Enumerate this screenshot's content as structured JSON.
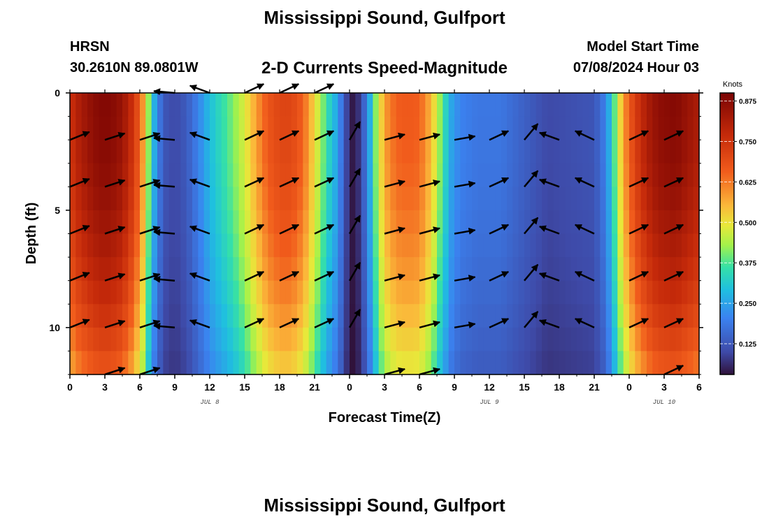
{
  "header": {
    "title": "Mississippi Sound, Gulfport",
    "station": "HRSN",
    "coords": "30.2610N  89.0801W",
    "subtitle": "2-D Currents Speed-Magnitude",
    "start_label": "Model Start Time",
    "start_time": "07/08/2024 Hour 03",
    "footer_title": "Mississippi Sound, Gulfport"
  },
  "chart_data": {
    "type": "heatmap",
    "title": "2-D Currents Speed-Magnitude",
    "xlabel": "Forecast Time(Z)",
    "ylabel": "Depth (ft)",
    "x_ticks": [
      "0",
      "3",
      "6",
      "9",
      "12",
      "15",
      "18",
      "21",
      "0",
      "3",
      "6",
      "9",
      "12",
      "15",
      "18",
      "21",
      "0",
      "3",
      "6"
    ],
    "x_range_hours": [
      0,
      54
    ],
    "date_labels": [
      {
        "label": "JUL 8",
        "hour": 12
      },
      {
        "label": "JUL 9",
        "hour": 36
      },
      {
        "label": "JUL 10",
        "hour": 51
      }
    ],
    "y_ticks": [
      0,
      5,
      10
    ],
    "y_range_ft": [
      0,
      12
    ],
    "depth_levels_ft": [
      0,
      2,
      4,
      6,
      8,
      10,
      12
    ],
    "colorbar": {
      "label": "Knots",
      "ticks": [
        "0.875",
        "0.750",
        "0.625",
        "0.500",
        "0.375",
        "0.250",
        "0.125"
      ],
      "tick_values": [
        0.875,
        0.75,
        0.625,
        0.5,
        0.375,
        0.25,
        0.125
      ],
      "range": [
        0.03,
        0.9
      ]
    },
    "speed_profile_knots": [
      [
        0,
        0.72
      ],
      [
        0.5,
        0.78
      ],
      [
        1.5,
        0.84
      ],
      [
        2.5,
        0.88
      ],
      [
        3.5,
        0.88
      ],
      [
        4.5,
        0.84
      ],
      [
        5.5,
        0.72
      ],
      [
        6.3,
        0.55
      ],
      [
        6.9,
        0.34
      ],
      [
        7.5,
        0.2
      ],
      [
        8.2,
        0.12
      ],
      [
        9,
        0.1
      ],
      [
        10,
        0.13
      ],
      [
        11,
        0.2
      ],
      [
        12,
        0.28
      ],
      [
        13,
        0.33
      ],
      [
        14,
        0.38
      ],
      [
        15,
        0.45
      ],
      [
        16,
        0.55
      ],
      [
        17,
        0.64
      ],
      [
        18,
        0.68
      ],
      [
        19,
        0.68
      ],
      [
        20,
        0.62
      ],
      [
        21,
        0.48
      ],
      [
        22,
        0.34
      ],
      [
        22.8,
        0.26
      ],
      [
        23.5,
        0.15
      ],
      [
        24,
        0.04
      ],
      [
        24.5,
        0.04
      ],
      [
        25,
        0.1
      ],
      [
        25.6,
        0.22
      ],
      [
        26.3,
        0.4
      ],
      [
        27,
        0.55
      ],
      [
        28,
        0.62
      ],
      [
        29,
        0.63
      ],
      [
        30,
        0.62
      ],
      [
        31,
        0.52
      ],
      [
        32,
        0.35
      ],
      [
        32.7,
        0.25
      ],
      [
        33.5,
        0.2
      ],
      [
        35,
        0.18
      ],
      [
        37,
        0.18
      ],
      [
        39,
        0.14
      ],
      [
        41,
        0.1
      ],
      [
        43,
        0.11
      ],
      [
        45,
        0.12
      ],
      [
        46,
        0.2
      ],
      [
        46.7,
        0.35
      ],
      [
        47.5,
        0.55
      ],
      [
        48.5,
        0.7
      ],
      [
        49.5,
        0.8
      ],
      [
        50.5,
        0.86
      ],
      [
        52,
        0.88
      ],
      [
        53,
        0.84
      ],
      [
        54,
        0.8
      ]
    ],
    "arrows": [
      {
        "hour": 0,
        "depths_ft": [
          2,
          4,
          6,
          8,
          10
        ],
        "angle_deg": 22
      },
      {
        "hour": 3,
        "depths_ft": [
          2,
          4,
          6,
          8,
          10,
          12
        ],
        "angle_deg": 18
      },
      {
        "hour": 6,
        "depths_ft": [
          2,
          4,
          6,
          8,
          10,
          12
        ],
        "angle_deg": 18
      },
      {
        "hour": 9,
        "depths_ft": [
          0,
          2,
          4,
          6,
          8,
          10
        ],
        "angle_deg": 175
      },
      {
        "hour": 12,
        "depths_ft": [
          0,
          2,
          4,
          6,
          8,
          10
        ],
        "angle_deg": 160
      },
      {
        "hour": 15,
        "depths_ft": [
          0,
          2,
          4,
          6,
          8,
          10
        ],
        "angle_deg": 25
      },
      {
        "hour": 18,
        "depths_ft": [
          0,
          2,
          4,
          6,
          8,
          10
        ],
        "angle_deg": 25
      },
      {
        "hour": 21,
        "depths_ft": [
          0,
          2,
          4,
          6,
          8,
          10
        ],
        "angle_deg": 25
      },
      {
        "hour": 24,
        "depths_ft": [
          2,
          4,
          6,
          8,
          10
        ],
        "angle_deg": 60
      },
      {
        "hour": 27,
        "depths_ft": [
          2,
          4,
          6,
          8,
          10,
          12
        ],
        "angle_deg": 15
      },
      {
        "hour": 30,
        "depths_ft": [
          2,
          4,
          6,
          8,
          10,
          12
        ],
        "angle_deg": 15
      },
      {
        "hour": 33,
        "depths_ft": [
          2,
          4,
          6,
          8,
          10
        ],
        "angle_deg": 10
      },
      {
        "hour": 36,
        "depths_ft": [
          2,
          4,
          6,
          8,
          10
        ],
        "angle_deg": 25
      },
      {
        "hour": 39,
        "depths_ft": [
          2,
          4,
          6,
          8,
          10
        ],
        "angle_deg": 50
      },
      {
        "hour": 42,
        "depths_ft": [
          2,
          4,
          6,
          8,
          10
        ],
        "angle_deg": 160
      },
      {
        "hour": 45,
        "depths_ft": [
          2,
          4,
          6,
          8,
          10
        ],
        "angle_deg": 155
      },
      {
        "hour": 48,
        "depths_ft": [
          2,
          4,
          6,
          8,
          10
        ],
        "angle_deg": 25
      },
      {
        "hour": 51,
        "depths_ft": [
          2,
          4,
          6,
          8,
          10,
          12
        ],
        "angle_deg": 25
      }
    ]
  }
}
